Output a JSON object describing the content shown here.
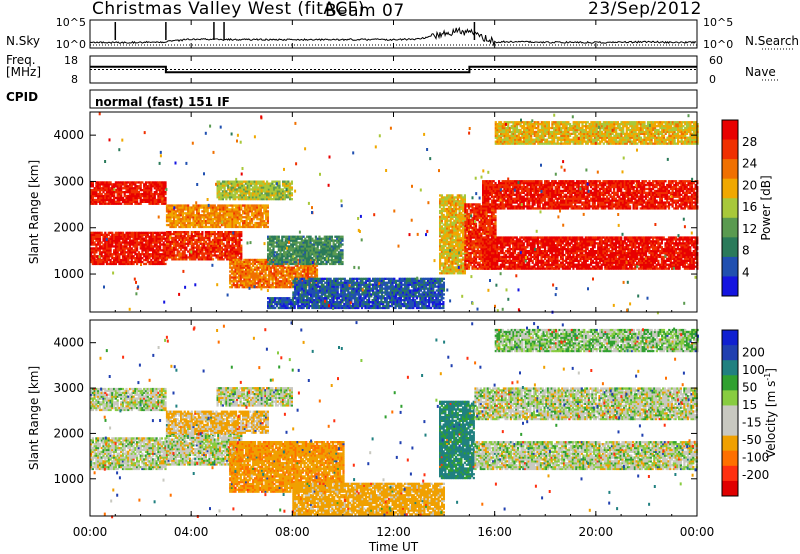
{
  "header": {
    "station": "Christmas Valley West (fitACF)",
    "beam": "Beam 07",
    "date": "23/Sep/2012"
  },
  "strips": {
    "nsky_label": "N.Sky",
    "nsearch_label": "N.Search",
    "freq_label_line1": "Freq.",
    "freq_label_line2": "[MHz]",
    "nave_label": "Nave",
    "cpid_label": "CPID",
    "cpid_value": "normal (fast) 151 IF",
    "noise_left_ticks": [
      "10^5",
      "10^0"
    ],
    "noise_right_ticks": [
      "10^5",
      "10^0"
    ],
    "freq_left_ticks": [
      "18",
      "8"
    ],
    "freq_right_ticks": [
      "60",
      "0"
    ]
  },
  "colors": {
    "power_scale": [
      "#1515e0",
      "#2050b0",
      "#2a7a5a",
      "#5a9a50",
      "#a8c83a",
      "#f0a800",
      "#f07000",
      "#f03000",
      "#e80000"
    ],
    "velocity_scale": [
      "#e00000",
      "#ff3010",
      "#ff7000",
      "#f0a000",
      "#c8c8c0",
      "#c8c8c0",
      "#88cc40",
      "#30a030",
      "#208080",
      "#2040b0",
      "#1020d0"
    ],
    "ground_scatter": "#c8c8c0"
  },
  "chart_data": [
    {
      "type": "line",
      "name": "noise-strip",
      "xlim": [
        0,
        24
      ],
      "series": [
        {
          "name": "N.Sky",
          "x": [
            0,
            1,
            2,
            3,
            4,
            5,
            6,
            7,
            8,
            9,
            10,
            11,
            12,
            13,
            14,
            14.5,
            15,
            15.5,
            16,
            17,
            18,
            19,
            20,
            21,
            22,
            23,
            24
          ],
          "values": [
            0.18,
            0.2,
            0.2,
            0.22,
            0.32,
            0.3,
            0.3,
            0.3,
            0.3,
            0.3,
            0.3,
            0.3,
            0.3,
            0.32,
            0.5,
            0.6,
            0.55,
            0.4,
            0.22,
            0.22,
            0.2,
            0.2,
            0.2,
            0.2,
            0.22,
            0.2,
            0.2
          ]
        }
      ],
      "spikes": [
        1,
        3,
        4.9,
        5.3,
        15.2
      ]
    },
    {
      "type": "line",
      "name": "frequency-strip",
      "xlim": [
        0,
        24
      ],
      "ylim": [
        8,
        18
      ],
      "series": [
        {
          "name": "Freq.",
          "x": [
            0,
            3,
            3,
            15,
            15,
            24
          ],
          "values": [
            14,
            14,
            12,
            12,
            14,
            14
          ]
        }
      ],
      "nave_line": 0.5
    },
    {
      "type": "heatmap",
      "name": "power-panel",
      "xlabel": "",
      "ylabel": "Slant Range [km]",
      "xlim": [
        0,
        24
      ],
      "ylim": [
        180,
        4500
      ],
      "yticks": [
        1000,
        2000,
        3000,
        4000
      ],
      "colorbar_label": "Power [dB]",
      "colorbar_ticks": [
        4,
        8,
        12,
        16,
        20,
        24,
        28
      ],
      "bands": [
        {
          "x0": 0,
          "x1": 3,
          "y0": 1200,
          "y1": 1900,
          "v": 0.95
        },
        {
          "x0": 0,
          "x1": 3,
          "y0": 2500,
          "y1": 3000,
          "v": 0.95
        },
        {
          "x0": 3,
          "x1": 6,
          "y0": 1300,
          "y1": 1900,
          "v": 0.9
        },
        {
          "x0": 3,
          "x1": 7,
          "y0": 2000,
          "y1": 2500,
          "v": 0.7
        },
        {
          "x0": 5,
          "x1": 8,
          "y0": 2600,
          "y1": 3000,
          "v": 0.5
        },
        {
          "x0": 5.5,
          "x1": 9,
          "y0": 700,
          "y1": 1300,
          "v": 0.75
        },
        {
          "x0": 7,
          "x1": 10,
          "y0": 1200,
          "y1": 1800,
          "v": 0.3
        },
        {
          "x0": 8,
          "x1": 14,
          "y0": 500,
          "y1": 900,
          "v": 0.15
        },
        {
          "x0": 7,
          "x1": 14,
          "y0": 250,
          "y1": 500,
          "v": 0.12
        },
        {
          "x0": 13.8,
          "x1": 14.8,
          "y0": 1000,
          "y1": 2700,
          "v": 0.6
        },
        {
          "x0": 14.8,
          "x1": 16,
          "y0": 1100,
          "y1": 2500,
          "v": 0.9
        },
        {
          "x0": 15.5,
          "x1": 24,
          "y0": 1100,
          "y1": 1800,
          "v": 0.98
        },
        {
          "x0": 15.5,
          "x1": 24,
          "y0": 2400,
          "y1": 3000,
          "v": 0.95
        },
        {
          "x0": 16,
          "x1": 24,
          "y0": 3800,
          "y1": 4300,
          "v": 0.6
        }
      ]
    },
    {
      "type": "heatmap",
      "name": "velocity-panel",
      "xlabel": "Time UT",
      "ylabel": "Slant Range [km]",
      "xlim": [
        0,
        24
      ],
      "ylim": [
        180,
        4500
      ],
      "xticks": [
        "00:00",
        "04:00",
        "08:00",
        "12:00",
        "16:00",
        "20:00",
        "00:00"
      ],
      "yticks": [
        1000,
        2000,
        3000,
        4000
      ],
      "colorbar_label": "Velocity [m s-1]",
      "colorbar_ticks": [
        200,
        100,
        50,
        15,
        -15,
        -50,
        -100,
        -200
      ],
      "bands": [
        {
          "x0": 0,
          "x1": 3,
          "y0": 1200,
          "y1": 1900,
          "v": 0
        },
        {
          "x0": 0,
          "x1": 3,
          "y0": 2500,
          "y1": 3000,
          "v": 0
        },
        {
          "x0": 3,
          "x1": 6,
          "y0": 1300,
          "y1": 2000,
          "v": 0
        },
        {
          "x0": 3,
          "x1": 7,
          "y0": 2000,
          "y1": 2500,
          "v": -20
        },
        {
          "x0": 5,
          "x1": 8,
          "y0": 2600,
          "y1": 3000,
          "v": 0
        },
        {
          "x0": 5.5,
          "x1": 10,
          "y0": 700,
          "y1": 1800,
          "v": -40
        },
        {
          "x0": 8,
          "x1": 14,
          "y0": 200,
          "y1": 900,
          "v": -30
        },
        {
          "x0": 13.8,
          "x1": 15.2,
          "y0": 1000,
          "y1": 2700,
          "v": 60
        },
        {
          "x0": 15.2,
          "x1": 24,
          "y0": 1200,
          "y1": 1800,
          "v": 0
        },
        {
          "x0": 15.2,
          "x1": 24,
          "y0": 2300,
          "y1": 3000,
          "v": 0
        },
        {
          "x0": 16,
          "x1": 24,
          "y0": 3800,
          "y1": 4300,
          "v": 10
        }
      ]
    }
  ],
  "shared_x_ticks": [
    "00:00",
    "04:00",
    "08:00",
    "12:00",
    "16:00",
    "20:00",
    "00:00"
  ],
  "shared_y_ticks": [
    "1000",
    "2000",
    "3000",
    "4000"
  ],
  "xaxis_title": "Time UT",
  "yaxis_title": "Slant Range [km]",
  "power_cbar_title": "Power [dB]",
  "power_cbar_ticks": [
    "28",
    "24",
    "20",
    "16",
    "12",
    "8",
    "4"
  ],
  "velocity_cbar_title": "Velocity [m s",
  "velocity_cbar_title_sup": "-1",
  "velocity_cbar_title_end": "]",
  "velocity_cbar_ticks": [
    "200",
    "100",
    "50",
    "15",
    "-15",
    "-50",
    "-100",
    "-200"
  ]
}
